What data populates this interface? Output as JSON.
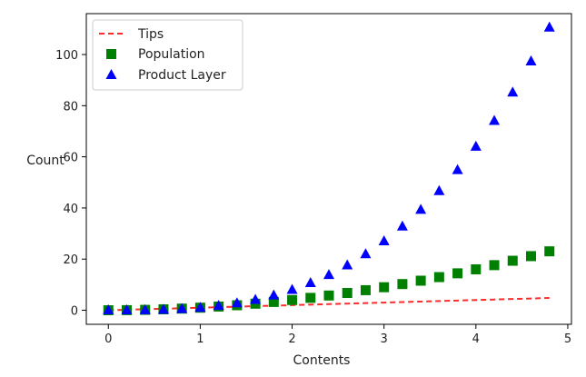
{
  "chart_data": {
    "type": "line",
    "xlabel": "Contents",
    "ylabel": "Count",
    "xlim": [
      -0.24,
      5.04
    ],
    "ylim": [
      -5.5,
      116
    ],
    "xticks": [
      0,
      1,
      2,
      3,
      4,
      5
    ],
    "yticks": [
      0,
      20,
      40,
      60,
      80,
      100
    ],
    "legend_position": "upper-left",
    "x": [
      0,
      0.2,
      0.4,
      0.6,
      0.8,
      1.0,
      1.2,
      1.4,
      1.6,
      1.8,
      2.0,
      2.2,
      2.4,
      2.6,
      2.8,
      3.0,
      3.2,
      3.4,
      3.6,
      3.8,
      4.0,
      4.2,
      4.4,
      4.6,
      4.8
    ],
    "series": [
      {
        "name": "Tips",
        "style": "dashed-line",
        "color": "#ff2a2a",
        "values": [
          0,
          0.2,
          0.4,
          0.6,
          0.8,
          1.0,
          1.2,
          1.4,
          1.6,
          1.8,
          2.0,
          2.2,
          2.4,
          2.6,
          2.8,
          3.0,
          3.2,
          3.4,
          3.6,
          3.8,
          4.0,
          4.2,
          4.4,
          4.6,
          4.8
        ]
      },
      {
        "name": "Population",
        "style": "square-markers",
        "color": "#008000",
        "values": [
          0,
          0.04,
          0.16,
          0.36,
          0.64,
          1.0,
          1.44,
          1.96,
          2.56,
          3.24,
          4.0,
          4.84,
          5.76,
          6.76,
          7.84,
          9.0,
          10.24,
          11.56,
          12.96,
          14.44,
          16.0,
          17.64,
          19.36,
          21.16,
          23.04
        ]
      },
      {
        "name": "Product Layer",
        "style": "triangle-markers",
        "color": "#0000ff",
        "values": [
          0,
          0.008,
          0.064,
          0.216,
          0.512,
          1.0,
          1.728,
          2.744,
          4.096,
          5.832,
          8.0,
          10.648,
          13.824,
          17.576,
          21.952,
          27.0,
          32.768,
          39.304,
          46.656,
          54.872,
          64.0,
          74.088,
          85.184,
          97.336,
          110.592
        ]
      }
    ]
  }
}
